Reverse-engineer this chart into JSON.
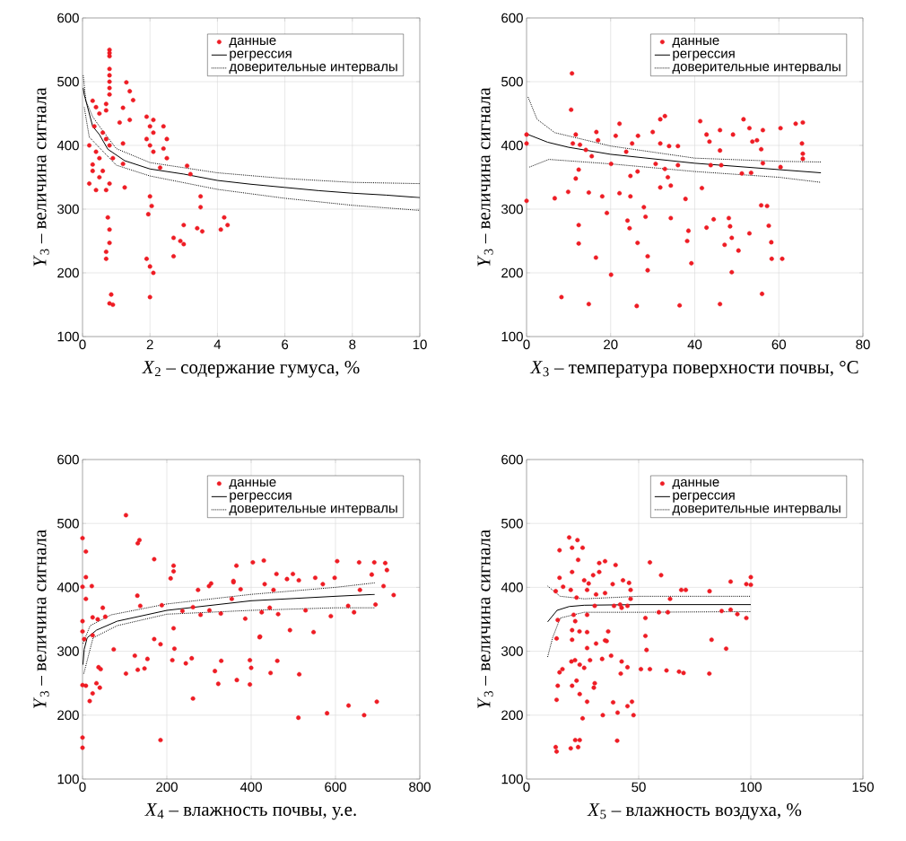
{
  "chart_data": [
    {
      "type": "scatter",
      "xlabel": "*X*$_{2}$ – содержание гумуса, %",
      "ylabel": "*Y*$_{3}$ – величина сигнала",
      "xlim": [
        0,
        10
      ],
      "ylim": [
        100,
        600
      ],
      "xticks": [
        0,
        2,
        4,
        6,
        8,
        10
      ],
      "yticks": [
        100,
        200,
        300,
        400,
        500,
        600
      ],
      "grid": true,
      "legend": "top right",
      "series": [
        {
          "name": "данные",
          "color": "#ee1c24",
          "marker": "circle",
          "x": [
            0.8,
            0.8,
            0.8,
            0.8,
            0.8,
            0.8,
            0.8,
            0.8,
            0.7,
            0.7,
            0.3,
            0.4,
            0.5,
            0.35,
            0.6,
            0.2,
            0.4,
            0.5,
            0.7,
            0.8,
            0.3,
            0.5,
            0.2,
            0.4,
            0.7,
            0.6,
            0.9,
            0.3,
            0.8,
            0.75,
            0.8,
            0.8,
            0.7,
            0.7,
            0.85,
            0.8,
            0.9,
            1.2,
            1.25,
            1.3,
            1.4,
            1.2,
            1.1,
            1.2,
            1.5,
            1.4,
            1.9,
            2.0,
            2.1,
            1.9,
            2.0,
            2.1,
            2.1,
            2.0,
            2.05,
            1.95,
            1.9,
            2.0,
            2.1,
            2.0,
            2.4,
            2.5,
            2.4,
            2.5,
            2.3,
            2.7,
            2.9,
            3.0,
            2.7,
            3.0,
            3.1,
            3.2,
            3.5,
            3.5,
            3.4,
            3.55,
            4.2,
            4.3,
            4.1
          ],
          "values": [
            550,
            545,
            540,
            520,
            510,
            500,
            490,
            480,
            465,
            455,
            470,
            460,
            450,
            430,
            420,
            400,
            390,
            380,
            410,
            400,
            360,
            350,
            340,
            330,
            330,
            360,
            380,
            370,
            340,
            287,
            268,
            247,
            233,
            222,
            166,
            152,
            150,
            371,
            334,
            499,
            485,
            459,
            436,
            403,
            471,
            440,
            445,
            430,
            420,
            410,
            400,
            440,
            390,
            320,
            305,
            292,
            222,
            210,
            200,
            162,
            430,
            410,
            395,
            380,
            365,
            255,
            250,
            245,
            226,
            275,
            368,
            355,
            320,
            303,
            270,
            265,
            287,
            275,
            268
          ]
        },
        {
          "name": "регрессия",
          "type": "line",
          "color": "#000000",
          "marker": "none",
          "line_style": "solid",
          "x": [
            0.02,
            0.05,
            0.3,
            0.5,
            0.75,
            1.25,
            2,
            3,
            4,
            5,
            6,
            7,
            8,
            9,
            10
          ],
          "values": [
            490,
            480,
            430,
            417,
            394,
            376,
            363,
            355,
            345,
            339,
            334,
            329,
            325,
            322,
            318
          ]
        },
        {
          "name": "доверительные интервалы",
          "type": "line",
          "color": "#000000",
          "marker": "none",
          "line_style": "dotted",
          "x": [
            0.02,
            0.1,
            0.3,
            0.5,
            1,
            2,
            4,
            6,
            8,
            10
          ],
          "values": [
            510,
            470,
            445,
            430,
            395,
            373,
            357,
            348,
            342,
            340
          ]
        },
        {
          "type": "line",
          "color": "#000000",
          "marker": "none",
          "line_style": "dotted",
          "x": [
            0.05,
            0.2,
            1,
            2,
            4,
            6,
            8,
            10
          ],
          "values": [
            460,
            413,
            369,
            352,
            331,
            317,
            306,
            298
          ]
        }
      ]
    },
    {
      "type": "scatter",
      "xlabel": "*X*$_{3}$ – температура поверхности почвы, °C",
      "ylabel": "*Y*$_{3}$ – величина сигнала",
      "xlim": [
        0,
        80
      ],
      "ylim": [
        100,
        600
      ],
      "xticks": [
        0,
        20,
        40,
        60,
        80
      ],
      "yticks": [
        100,
        200,
        300,
        400,
        500,
        600
      ],
      "grid": true,
      "legend": "top right",
      "series": [
        {
          "name": "данные",
          "color": "#ee1c24",
          "marker": "circle",
          "x": [
            10.8,
            10.6,
            11.7,
            16.6,
            11,
            12.7,
            14.1,
            15.5,
            17,
            21.2,
            22.1,
            20.1,
            23.7,
            25.1,
            26.5,
            24.7,
            26.4,
            30,
            31.8,
            32.9,
            31.8,
            33.9,
            36,
            30.7,
            32.9,
            36,
            33.6,
            31.8,
            34.3,
            41.3,
            42.8,
            43.5,
            46,
            46,
            46.3,
            43.8,
            49.1,
            51.6,
            53,
            56.2,
            54.8,
            53.7,
            55.8,
            56.2,
            53.4,
            51.2,
            60.4,
            64,
            65.7,
            65.5,
            65.7,
            65.7,
            60.4,
            12.4,
            11.7,
            6.7,
            9.9,
            14.8,
            18,
            22.1,
            24.7,
            27.9,
            28.3,
            19.1,
            24,
            24.5,
            12.4,
            12.4,
            16.5,
            20.1,
            26.4,
            28.8,
            28.8,
            37.8,
            41.7,
            34.3,
            38.5,
            38.2,
            39.2,
            36.4,
            26.2,
            14.8,
            8.3,
            46,
            44.5,
            42.8,
            48.1,
            48.4,
            48.8,
            47.1,
            50.4,
            48.8,
            53,
            55.8,
            57.2,
            57.6,
            58.2,
            58.3,
            60.8,
            56,
            0,
            0,
            0
          ],
          "values": [
            513,
            456,
            417,
            421,
            403,
            401,
            393,
            383,
            408,
            415,
            434,
            371,
            390,
            403,
            415,
            352,
            359,
            421,
            441,
            446,
            403,
            399,
            399,
            371,
            363,
            369,
            350,
            334,
            337,
            438,
            417,
            406,
            424,
            392,
            369,
            369,
            417,
            441,
            427,
            424,
            408,
            406,
            394,
            372,
            357,
            356,
            427,
            434,
            436,
            403,
            387,
            379,
            366,
            362,
            348,
            317,
            327,
            326,
            320,
            325,
            320,
            303,
            288,
            294,
            282,
            270,
            275,
            246,
            224,
            197,
            247,
            226,
            204,
            316,
            333,
            286,
            266,
            250,
            215,
            149,
            148,
            151,
            162,
            151,
            284,
            271,
            286,
            273,
            255,
            244,
            235,
            201,
            262,
            306,
            305,
            274,
            248,
            222,
            222,
            167,
            417,
            313,
            403
          ]
        },
        {
          "name": "регрессия",
          "type": "line",
          "color": "#000000",
          "marker": "none",
          "line_style": "solid",
          "x": [
            0,
            5,
            10,
            20,
            40,
            60,
            70
          ],
          "values": [
            418,
            405,
            397,
            386,
            372,
            362,
            357
          ]
        },
        {
          "name": "доверительные интервалы",
          "type": "line",
          "color": "#000000",
          "marker": "none",
          "line_style": "dotted",
          "x": [
            0.35,
            2.5,
            6.7,
            20,
            40,
            60,
            70
          ],
          "values": [
            476,
            441,
            420,
            399,
            380,
            375,
            374
          ]
        },
        {
          "type": "line",
          "color": "#000000",
          "marker": "none",
          "line_style": "dotted",
          "x": [
            0.7,
            5.3,
            20,
            40,
            60,
            70
          ],
          "values": [
            366,
            378,
            371,
            359,
            350,
            342
          ]
        }
      ]
    },
    {
      "type": "scatter",
      "xlabel": "*X*$_{4}$ – влажность почвы, у.е.",
      "ylabel": "*Y*$_{3}$ – величина сигнала",
      "xlim": [
        0,
        800
      ],
      "ylim": [
        100,
        600
      ],
      "xticks": [
        0,
        200,
        400,
        600,
        800
      ],
      "yticks": [
        100,
        200,
        300,
        400,
        500,
        600
      ],
      "grid": true,
      "legend": "top right",
      "series": [
        {
          "name": "данные",
          "color": "#ee1c24",
          "marker": "circle",
          "x": [
            103,
            131,
            135,
            170,
            216,
            216,
            209,
            130,
            137,
            188,
            48,
            54,
            24,
            36,
            0,
            8,
            8,
            8,
            22,
            0,
            0,
            0,
            4,
            24,
            74,
            124,
            103,
            131,
            147,
            154,
            170,
            185,
            213,
            218,
            216,
            245,
            259,
            262,
            185,
            38,
            43,
            33,
            41,
            24,
            17,
            8,
            0,
            0,
            0,
            237,
            262,
            280,
            274,
            300,
            305,
            301,
            328,
            354,
            375,
            358,
            365,
            358,
            386,
            404,
            430,
            432,
            421,
            425,
            444,
            460,
            453,
            464,
            485,
            499,
            513,
            529,
            552,
            570,
            604,
            598,
            589,
            630,
            644,
            656,
            658,
            686,
            692,
            718,
            722,
            714,
            738,
            695,
            397,
            400,
            397,
            366,
            329,
            314,
            322,
            462,
            446,
            514,
            492,
            548,
            512,
            580,
            631,
            668,
            698,
            420
          ],
          "values": [
            513,
            469,
            474,
            444,
            434,
            425,
            414,
            387,
            371,
            372,
            368,
            354,
            353,
            350,
            477,
            456,
            416,
            382,
            402,
            401,
            347,
            331,
            319,
            325,
            303,
            293,
            265,
            271,
            273,
            288,
            319,
            311,
            286,
            304,
            336,
            281,
            289,
            226,
            161,
            275,
            272,
            250,
            243,
            234,
            222,
            246,
            247,
            165,
            149,
            363,
            369,
            357,
            396,
            402,
            406,
            364,
            359,
            382,
            397,
            410,
            434,
            408,
            351,
            439,
            442,
            405,
            323,
            361,
            368,
            421,
            396,
            358,
            413,
            421,
            411,
            364,
            415,
            405,
            441,
            415,
            355,
            371,
            361,
            439,
            396,
            420,
            439,
            438,
            427,
            402,
            388,
            373,
            286,
            274,
            248,
            255,
            285,
            269,
            249,
            285,
            266,
            264,
            333,
            330,
            196,
            203,
            215,
            200,
            221,
            322
          ]
        },
        {
          "name": "регрессия",
          "type": "line",
          "color": "#000000",
          "marker": "none",
          "line_style": "solid",
          "x": [
            1,
            4,
            11,
            33,
            82,
            200,
            400,
            600,
            693
          ],
          "values": [
            279,
            303,
            321,
            333,
            347,
            364,
            379,
            386,
            389
          ]
        },
        {
          "name": "доверительные интервалы",
          "type": "line",
          "color": "#000000",
          "marker": "none",
          "line_style": "dotted",
          "x": [
            1,
            18,
            68,
            200,
            400,
            600,
            693
          ],
          "values": [
            312,
            340,
            357,
            374,
            389,
            400,
            407
          ]
        },
        {
          "type": "line",
          "color": "#000000",
          "marker": "none",
          "line_style": "dotted",
          "x": [
            3,
            25,
            82,
            200,
            400,
            600,
            693
          ],
          "values": [
            265,
            321,
            340,
            358,
            364,
            368,
            368
          ]
        }
      ]
    },
    {
      "type": "scatter",
      "xlabel": "*X*$_{5}$ – влажность воздуха, %",
      "ylabel": "*Y*$_{3}$ – величина сигнала",
      "xlim": [
        0,
        150
      ],
      "ylim": [
        100,
        600
      ],
      "xticks": [
        0,
        50,
        100,
        150
      ],
      "yticks": [
        100,
        200,
        300,
        400,
        500,
        600
      ],
      "grid": true,
      "legend": "top right",
      "series": [
        {
          "name": "данные",
          "color": "#ee1c24",
          "marker": "circle",
          "x": [
            19,
            22.7,
            14.7,
            20.3,
            25,
            32.4,
            35,
            39.7,
            55,
            60,
            43,
            45.7,
            46.4,
            38.4,
            32.4,
            29.7,
            27.7,
            25.7,
            20.3,
            23,
            27,
            31,
            14.7,
            16.3,
            19.7,
            13,
            22.3,
            21,
            21.7,
            20.3,
            27,
            30.4,
            39,
            41.7,
            45,
            46.4,
            53,
            53,
            53.5,
            59,
            63,
            64,
            69,
            71,
            81.6,
            87,
            91,
            94,
            98,
            82.5,
            89,
            91,
            98,
            100,
            100,
            13.4,
            13.9,
            20.3,
            23.6,
            27,
            27,
            31,
            36.4,
            35.7,
            21.6,
            23.7,
            25.7,
            28.3,
            33.7,
            37.7,
            35,
            42.4,
            42,
            45,
            51,
            55,
            62.4,
            68,
            70,
            81.5,
            14.7,
            13.9,
            13.4,
            20.3,
            22.3,
            23.7,
            30.4,
            30,
            27,
            25,
            34,
            38.6,
            40.6,
            45,
            47,
            47.7,
            40.4,
            13,
            13.4,
            19.7,
            21.7,
            23.7,
            23,
            16,
            20,
            35,
            42.4
          ],
          "values": [
            478,
            474,
            458,
            462,
            462,
            438,
            441,
            435,
            439,
            419,
            411,
            407,
            396,
            405,
            424,
            419,
            406,
            411,
            424,
            443,
            396,
            389,
            415,
            401,
            396,
            394,
            384,
            357,
            347,
            333,
            357,
            371,
            371,
            373,
            371,
            382,
            352,
            324,
            302,
            361,
            361,
            382,
            396,
            396,
            394,
            363,
            365,
            358,
            352,
            318,
            304,
            409,
            405,
            416,
            404,
            320,
            349,
            318,
            331,
            330,
            305,
            312,
            331,
            316,
            286,
            279,
            274,
            286,
            288,
            293,
            317,
            284,
            265,
            275,
            272,
            272,
            270,
            268,
            266,
            265,
            267,
            246,
            224,
            246,
            254,
            233,
            250,
            243,
            221,
            195,
            200,
            220,
            204,
            214,
            221,
            200,
            160,
            150,
            143,
            148,
            161,
            161,
            150,
            272,
            284,
            391,
            368
          ]
        },
        {
          "name": "регрессия",
          "type": "line",
          "color": "#000000",
          "marker": "none",
          "line_style": "solid",
          "x": [
            9.4,
            13.6,
            19,
            25.7,
            50,
            100
          ],
          "values": [
            346,
            364,
            370,
            372,
            373,
            373
          ]
        },
        {
          "name": "доверительные интервалы",
          "type": "line",
          "color": "#000000",
          "marker": "none",
          "line_style": "dotted",
          "x": [
            9.4,
            15,
            25.7,
            50,
            100
          ],
          "values": [
            402,
            386,
            382,
            386,
            386
          ]
        },
        {
          "type": "line",
          "color": "#000000",
          "marker": "none",
          "line_style": "dotted",
          "x": [
            9.4,
            11.6,
            15,
            25.7,
            50,
            100
          ],
          "values": [
            291,
            321,
            352,
            361,
            361,
            362
          ]
        }
      ]
    }
  ]
}
